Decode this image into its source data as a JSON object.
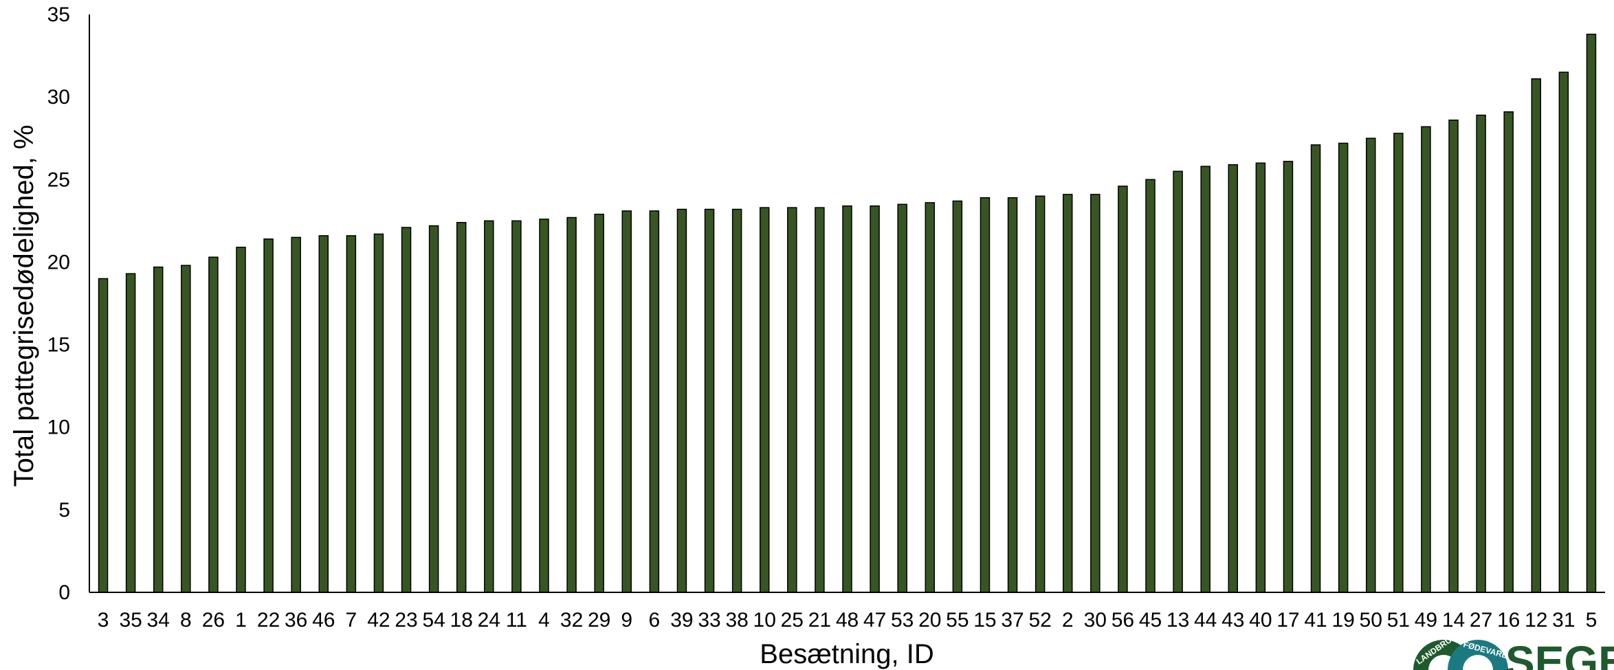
{
  "chart_data": {
    "type": "bar",
    "xlabel": "Besætning, ID",
    "ylabel": "Total pattegrisedødelighed, %",
    "ylim": [
      0,
      35
    ],
    "yticks": [
      0,
      5,
      10,
      15,
      20,
      25,
      30,
      35
    ],
    "grid": false,
    "bar_color": "#375623",
    "categories": [
      "3",
      "35",
      "34",
      "8",
      "26",
      "1",
      "22",
      "36",
      "46",
      "7",
      "42",
      "23",
      "54",
      "18",
      "24",
      "11",
      "4",
      "32",
      "29",
      "9",
      "6",
      "39",
      "33",
      "38",
      "10",
      "25",
      "21",
      "48",
      "47",
      "53",
      "20",
      "55",
      "15",
      "37",
      "52",
      "2",
      "30",
      "56",
      "45",
      "13",
      "44",
      "43",
      "40",
      "17",
      "41",
      "19",
      "50",
      "51",
      "49",
      "14",
      "27",
      "16",
      "12",
      "31",
      "5"
    ],
    "values": [
      19.0,
      19.3,
      19.7,
      19.8,
      20.3,
      20.9,
      21.4,
      21.5,
      21.6,
      21.6,
      21.7,
      22.1,
      22.2,
      22.4,
      22.5,
      22.5,
      22.6,
      22.7,
      22.9,
      23.1,
      23.1,
      23.2,
      23.2,
      23.2,
      23.3,
      23.3,
      23.3,
      23.4,
      23.4,
      23.5,
      23.6,
      23.7,
      23.9,
      23.9,
      24.0,
      24.1,
      24.1,
      24.6,
      25.0,
      25.5,
      25.8,
      25.9,
      26.0,
      26.1,
      27.1,
      27.2,
      27.5,
      27.8,
      28.2,
      28.6,
      28.9,
      29.1,
      31.1,
      31.5,
      33.8
    ]
  },
  "logo": {
    "text": "SEGES",
    "ring_left": "LANDBRUG",
    "ring_right": "FØDEVARER",
    "color": "#1f5a2e",
    "accent": "#1a7a80"
  }
}
